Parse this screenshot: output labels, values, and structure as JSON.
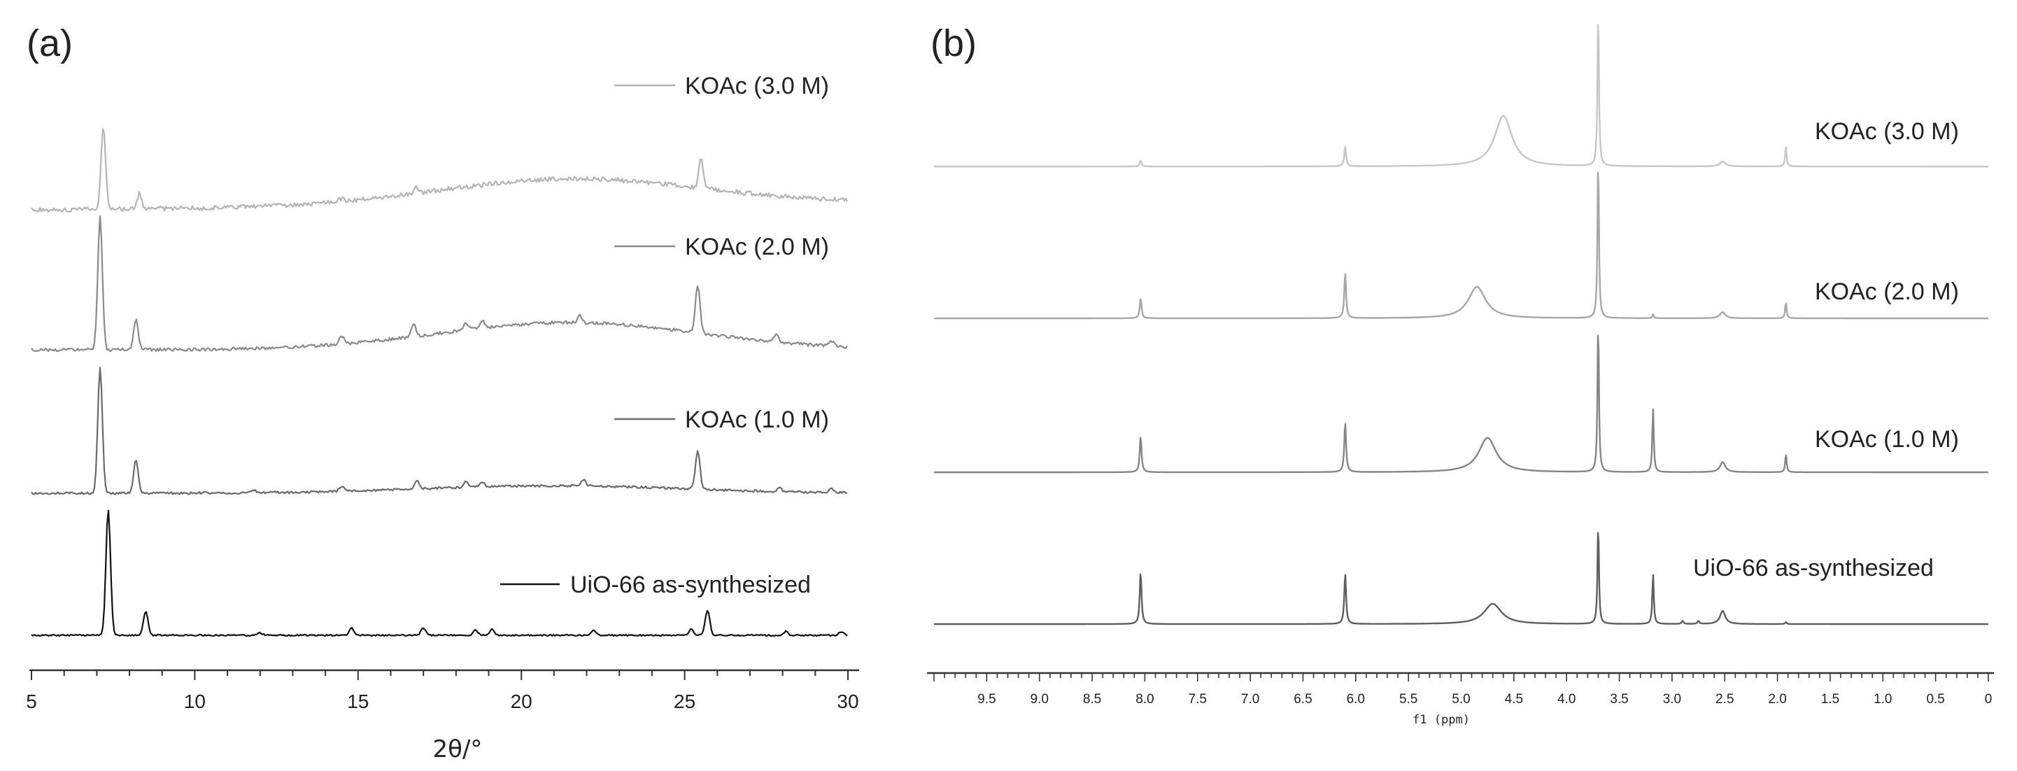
{
  "chart_data": [
    {
      "panel": "(a)",
      "type": "line",
      "xlabel": "2θ/°",
      "ylabel": "",
      "xlim": [
        5,
        30
      ],
      "xticks": [
        "5",
        "10",
        "15",
        "20",
        "25",
        "30"
      ],
      "series": [
        {
          "name": "KOAc (3.0 M)",
          "color": "#b4b4b4",
          "baseline": 0.0,
          "hump": {
            "center": 21.5,
            "width": 4.0,
            "height": 0.23
          },
          "peaks": [
            {
              "x": 7.2,
              "h": 0.72
            },
            {
              "x": 8.3,
              "h": 0.13
            },
            {
              "x": 14.5,
              "h": 0.03
            },
            {
              "x": 16.8,
              "h": 0.05
            },
            {
              "x": 25.5,
              "h": 0.25
            }
          ]
        },
        {
          "name": "KOAc (2.0 M)",
          "color": "#8a8a8a",
          "baseline": 0.0,
          "hump": {
            "center": 21.5,
            "width": 4.0,
            "height": 0.2
          },
          "peaks": [
            {
              "x": 7.1,
              "h": 0.97
            },
            {
              "x": 8.2,
              "h": 0.22
            },
            {
              "x": 14.5,
              "h": 0.06
            },
            {
              "x": 16.7,
              "h": 0.1
            },
            {
              "x": 18.3,
              "h": 0.05
            },
            {
              "x": 18.8,
              "h": 0.06
            },
            {
              "x": 21.8,
              "h": 0.05
            },
            {
              "x": 25.4,
              "h": 0.35
            },
            {
              "x": 27.8,
              "h": 0.05
            },
            {
              "x": 29.5,
              "h": 0.04
            }
          ]
        },
        {
          "name": "KOAc (1.0 M)",
          "color": "#6a6a6a",
          "baseline": 0.0,
          "hump": {
            "center": 21.0,
            "width": 4.0,
            "height": 0.06
          },
          "peaks": [
            {
              "x": 7.1,
              "h": 1.0
            },
            {
              "x": 8.2,
              "h": 0.27
            },
            {
              "x": 11.8,
              "h": 0.02
            },
            {
              "x": 14.5,
              "h": 0.04
            },
            {
              "x": 16.8,
              "h": 0.07
            },
            {
              "x": 18.3,
              "h": 0.04
            },
            {
              "x": 18.8,
              "h": 0.04
            },
            {
              "x": 21.9,
              "h": 0.05
            },
            {
              "x": 25.4,
              "h": 0.3
            },
            {
              "x": 27.9,
              "h": 0.03
            },
            {
              "x": 29.5,
              "h": 0.03
            }
          ]
        },
        {
          "name": "UiO-66 as-synthesized",
          "color": "#111111",
          "baseline": 0.0,
          "hump": {
            "center": 21.0,
            "width": 4.0,
            "height": 0.0
          },
          "peaks": [
            {
              "x": 7.35,
              "h": 1.0
            },
            {
              "x": 8.5,
              "h": 0.19
            },
            {
              "x": 12.0,
              "h": 0.02
            },
            {
              "x": 14.8,
              "h": 0.06
            },
            {
              "x": 17.0,
              "h": 0.06
            },
            {
              "x": 18.6,
              "h": 0.04
            },
            {
              "x": 19.1,
              "h": 0.05
            },
            {
              "x": 22.2,
              "h": 0.04
            },
            {
              "x": 25.2,
              "h": 0.05
            },
            {
              "x": 25.7,
              "h": 0.2
            },
            {
              "x": 28.1,
              "h": 0.03
            },
            {
              "x": 29.8,
              "h": 0.03
            }
          ]
        }
      ]
    },
    {
      "panel": "(b)",
      "type": "line",
      "xlabel": "f1 (ppm)",
      "ylabel": "",
      "xlim": [
        10.0,
        0.0
      ],
      "xticks": [
        "9.5",
        "9.0",
        "8.5",
        "8.0",
        "7.5",
        "7.0",
        "6.5",
        "6.0",
        "5.5",
        "5.0",
        "4.5",
        "4.0",
        "3.5",
        "3.0",
        "2.5",
        "2.0",
        "1.5",
        "1.0",
        "0.5",
        "0"
      ],
      "series": [
        {
          "name": "KOAc (3.0 M)",
          "color": "#c6c6c6",
          "peaks": [
            {
              "x": 8.04,
              "h": 0.06,
              "w": 0.01
            },
            {
              "x": 6.1,
              "h": 0.2,
              "w": 0.01
            },
            {
              "x": 4.6,
              "h": 0.5,
              "w": 0.1
            },
            {
              "x": 3.7,
              "h": 1.55,
              "w": 0.008
            },
            {
              "x": 2.52,
              "h": 0.05,
              "w": 0.03
            },
            {
              "x": 1.92,
              "h": 0.2,
              "w": 0.008
            }
          ]
        },
        {
          "name": "KOAc (2.0 M)",
          "color": "#a6a6a6",
          "peaks": [
            {
              "x": 8.04,
              "h": 0.2,
              "w": 0.01
            },
            {
              "x": 6.1,
              "h": 0.45,
              "w": 0.01
            },
            {
              "x": 4.85,
              "h": 0.31,
              "w": 0.1
            },
            {
              "x": 3.7,
              "h": 1.6,
              "w": 0.008
            },
            {
              "x": 3.18,
              "h": 0.04,
              "w": 0.008
            },
            {
              "x": 2.52,
              "h": 0.06,
              "w": 0.03
            },
            {
              "x": 1.92,
              "h": 0.16,
              "w": 0.008
            }
          ]
        },
        {
          "name": "KOAc (1.0 M)",
          "color": "#858585",
          "peaks": [
            {
              "x": 8.04,
              "h": 0.36,
              "w": 0.01
            },
            {
              "x": 6.1,
              "h": 0.49,
              "w": 0.01
            },
            {
              "x": 4.75,
              "h": 0.34,
              "w": 0.1
            },
            {
              "x": 3.7,
              "h": 1.5,
              "w": 0.008
            },
            {
              "x": 3.18,
              "h": 0.64,
              "w": 0.008
            },
            {
              "x": 2.52,
              "h": 0.1,
              "w": 0.03
            },
            {
              "x": 1.92,
              "h": 0.18,
              "w": 0.008
            }
          ]
        },
        {
          "name": "UiO-66 as-synthesized",
          "color": "#5e5e5e",
          "peaks": [
            {
              "x": 8.04,
              "h": 0.52,
              "w": 0.01
            },
            {
              "x": 6.1,
              "h": 0.5,
              "w": 0.01
            },
            {
              "x": 4.7,
              "h": 0.2,
              "w": 0.1
            },
            {
              "x": 3.7,
              "h": 1.0,
              "w": 0.008
            },
            {
              "x": 3.18,
              "h": 0.5,
              "w": 0.008
            },
            {
              "x": 2.9,
              "h": 0.03,
              "w": 0.01
            },
            {
              "x": 2.75,
              "h": 0.03,
              "w": 0.01
            },
            {
              "x": 2.52,
              "h": 0.13,
              "w": 0.03
            },
            {
              "x": 1.92,
              "h": 0.02,
              "w": 0.008
            }
          ]
        }
      ]
    }
  ]
}
